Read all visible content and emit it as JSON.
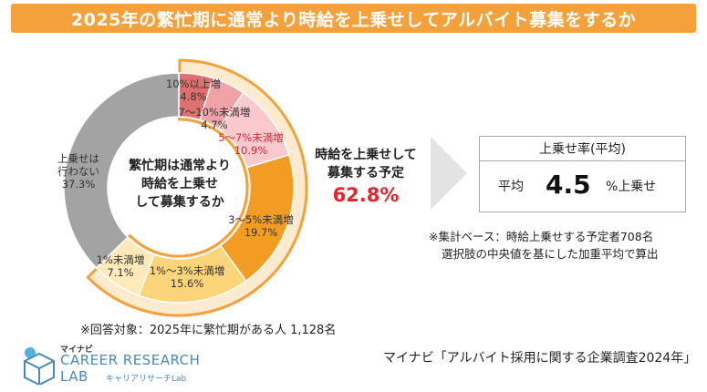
{
  "title": "2025年の繁忙期に通常より時給を上乗せしてアルバイト募集をするか",
  "center_label": [
    "繁忙期は通常より",
    "時給を上乗せ",
    "して募集するか"
  ],
  "planned": {
    "label_lines": [
      "時給を上乗せして",
      "募集する予定"
    ],
    "value": "62.8%"
  },
  "avg_box": {
    "header": "上乗せ率(平均)",
    "avg_label": "平均",
    "value": "4.5",
    "unit": "%上乗せ"
  },
  "note_base": [
    "※集計ベース：時給上乗せする予定者708名",
    "選択肢の中央値を基にした加重平均で算出"
  ],
  "note_target": "※回答対象：2025年に繁忙期がある人 1,128名",
  "source": "マイナビ「アルバイト採用に関する企業調査2024年」",
  "logo": {
    "brand": "マイナビ",
    "line1": "CAREER RESEARCH",
    "line2": "LAB",
    "sub": "キャリアリサーチLab"
  },
  "chart_data": {
    "type": "pie",
    "style": "donut",
    "unit": "%",
    "start_angle_deg": 0,
    "direction": "clockwise",
    "segments": [
      {
        "label": "10%以上増",
        "value": 4.8,
        "display": "4.8%",
        "color": "#e0706f",
        "text_color": "#333333"
      },
      {
        "label": "7～10%未満増",
        "value": 4.7,
        "display": "4.7%",
        "color": "#f0a3a6",
        "text_color": "#333333"
      },
      {
        "label": "5～7%未満増",
        "value": 10.9,
        "display": "10.9%",
        "color": "#f9c9cd",
        "text_color": "#cc2b3b"
      },
      {
        "label": "3～5%未満増",
        "value": 19.7,
        "display": "19.7%",
        "color": "#f39c24",
        "text_color": "#333333"
      },
      {
        "label": "1%～3%未満増",
        "value": 15.6,
        "display": "15.6%",
        "color": "#fcd47a",
        "text_color": "#333333"
      },
      {
        "label": "1%未満増",
        "value": 7.1,
        "display": "7.1%",
        "color": "#fdeab8",
        "text_color": "#333333"
      },
      {
        "label": "上乗せは\n行わない",
        "value": 37.3,
        "display": "37.3%",
        "color": "#a3a3a3",
        "text_color": "#333333"
      }
    ],
    "highlight": {
      "segments": [
        0,
        1,
        2,
        3,
        4,
        5
      ],
      "total": 62.8,
      "color": "#f4a13c"
    }
  }
}
